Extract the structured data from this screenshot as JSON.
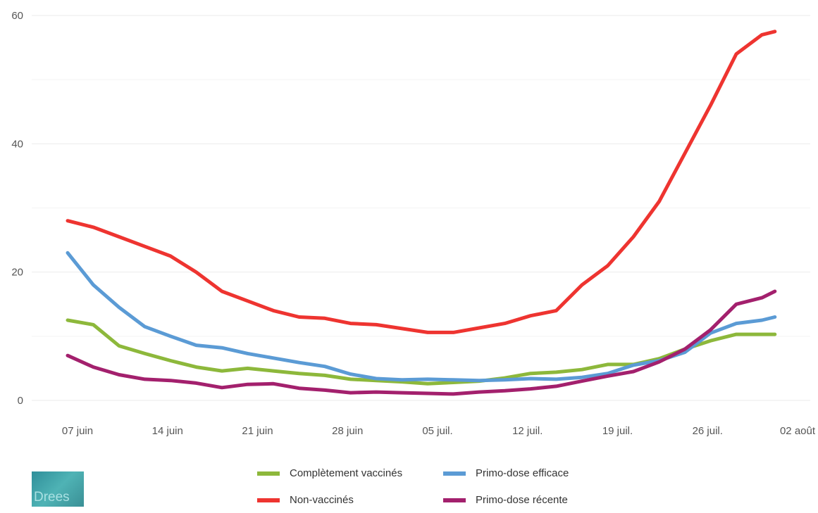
{
  "chart_data": {
    "type": "line",
    "x_ticks": [
      "07 juin",
      "14 juin",
      "21 juin",
      "28 juin",
      "05 juil.",
      "12 juil.",
      "19 juil.",
      "26 juil.",
      "02 août"
    ],
    "y_ticks": [
      "0",
      "20",
      "40",
      "60"
    ],
    "ylim": [
      0,
      60
    ],
    "x_start": "2021-06-07",
    "x_days": [
      0,
      2,
      4,
      6,
      8,
      10,
      12,
      14,
      16,
      18,
      20,
      22,
      24,
      26,
      28,
      30,
      32,
      34,
      36,
      38,
      40,
      42,
      44,
      46,
      48,
      50,
      52,
      54,
      55
    ],
    "grid": true,
    "series": [
      {
        "name": "Complètement vaccinés",
        "color": "#8db83b",
        "values": [
          12.5,
          11.8,
          8.5,
          7.3,
          6.2,
          5.2,
          4.6,
          5.0,
          4.6,
          4.2,
          3.9,
          3.3,
          3.1,
          2.9,
          2.6,
          2.8,
          3.0,
          3.5,
          4.2,
          4.4,
          4.8,
          5.6,
          5.6,
          6.5,
          8.0,
          9.3,
          10.3,
          10.3,
          10.3
        ]
      },
      {
        "name": "Primo-dose efficace",
        "color": "#5b9bd5",
        "values": [
          23.0,
          18.0,
          14.5,
          11.5,
          10.0,
          8.6,
          8.2,
          7.3,
          6.6,
          5.9,
          5.3,
          4.1,
          3.4,
          3.2,
          3.3,
          3.2,
          3.1,
          3.2,
          3.4,
          3.3,
          3.6,
          4.2,
          5.5,
          6.2,
          7.5,
          10.5,
          12.0,
          12.5,
          13.0
        ]
      },
      {
        "name": "Non-vaccinés",
        "color": "#ee3430",
        "values": [
          28.0,
          27.0,
          25.5,
          24.0,
          22.5,
          20.0,
          17.0,
          15.5,
          14.0,
          13.0,
          12.8,
          12.0,
          11.8,
          11.2,
          10.6,
          10.6,
          11.3,
          12.0,
          13.2,
          14.0,
          18.0,
          21.0,
          25.5,
          31.0,
          38.5,
          46.0,
          54.0,
          57.0,
          57.5
        ]
      },
      {
        "name": "Primo-dose récente",
        "color": "#a3206d",
        "values": [
          7.0,
          5.2,
          4.0,
          3.3,
          3.1,
          2.7,
          2.0,
          2.5,
          2.6,
          1.9,
          1.6,
          1.2,
          1.3,
          1.2,
          1.1,
          1.0,
          1.3,
          1.5,
          1.8,
          2.2,
          3.0,
          3.8,
          4.5,
          6.0,
          8.0,
          11.0,
          15.0,
          16.0,
          17.0
        ]
      }
    ]
  },
  "legend": {
    "items": [
      {
        "label": "Complètement vaccinés",
        "color": "#8db83b"
      },
      {
        "label": "Primo-dose efficace",
        "color": "#5b9bd5"
      },
      {
        "label": "Non-vaccinés",
        "color": "#ee3430"
      },
      {
        "label": "Primo-dose récente",
        "color": "#a3206d"
      }
    ]
  },
  "logo": {
    "text": "Drees"
  }
}
